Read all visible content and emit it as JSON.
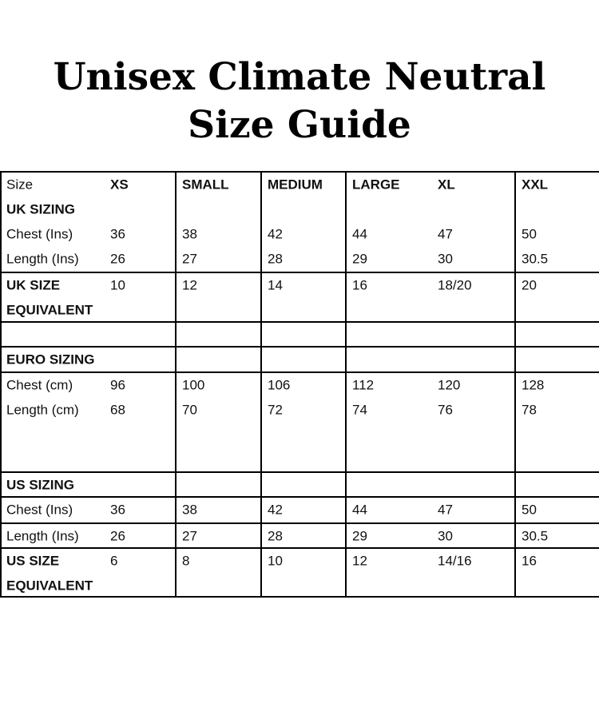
{
  "title_lines": [
    "Unisex Climate Neutral",
    "Size Guide"
  ],
  "table": {
    "groups": [
      [
        [
          "Size",
          "XS",
          "SMALL",
          "MEDIUM",
          "LARGE",
          "XL",
          "XXL"
        ],
        [
          "UK SIZING"
        ],
        [
          "Chest (Ins)",
          "36",
          "38",
          "42",
          "44",
          "47",
          "50"
        ],
        [
          "Length (Ins)",
          "26",
          "27",
          "28",
          "29",
          "30",
          "30.5"
        ]
      ],
      [
        [
          "UK SIZE",
          "10",
          "12",
          "14",
          "16",
          "18/20",
          "20"
        ],
        [
          "EQUIVALENT"
        ]
      ],
      [],
      [
        [
          "EURO SIZING"
        ]
      ],
      [
        [
          "Chest (cm)",
          "96",
          "100",
          "106",
          "112",
          "120",
          "128"
        ],
        [
          "Length (cm)",
          "68",
          "70",
          "72",
          "74",
          "76",
          "78"
        ]
      ],
      [
        [
          "US SIZING"
        ]
      ],
      [
        [
          "Chest (Ins)",
          "36",
          "38",
          "42",
          "44",
          "47",
          "50"
        ]
      ],
      [
        [
          "Length (Ins)",
          "26",
          "27",
          "28",
          "29",
          "30",
          "30.5"
        ]
      ],
      [
        [
          "US SIZE",
          "6",
          "8",
          "10",
          "12",
          "14/16",
          "16"
        ],
        [
          "EQUIVALENT"
        ]
      ]
    ]
  }
}
